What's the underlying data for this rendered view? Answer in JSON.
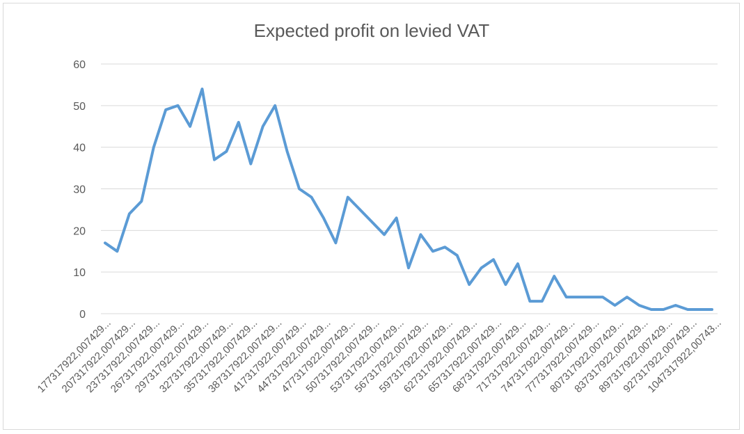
{
  "chart_data": {
    "type": "line",
    "title": "Expected profit on levied VAT",
    "xlabel": "",
    "ylabel": "",
    "ylim": [
      0,
      60
    ],
    "yticks": [
      0,
      10,
      20,
      30,
      40,
      50,
      60
    ],
    "grid": true,
    "legend": "none",
    "series_color": "#5b9bd5",
    "x_tick_labels": [
      "177317922,007429...",
      "207317922,007429...",
      "237317922,007429...",
      "267317922,007429...",
      "297317922,007429...",
      "327317922,007429...",
      "357317922,007429...",
      "387317922,007429...",
      "417317922,007429...",
      "447317922,007429...",
      "477317922,007429...",
      "507317922,007429...",
      "537317922,007429...",
      "567317922,007429...",
      "597317922,007429...",
      "627317922,007429...",
      "657317922,007429...",
      "687317922,007429...",
      "717317922,007429...",
      "747317922,007429...",
      "777317922,007429...",
      "807317922,007429...",
      "837317922,007429...",
      "897317922,007429...",
      "927317922,007429...",
      "1047317922,00743..."
    ],
    "values": [
      17,
      15,
      24,
      27,
      40,
      49,
      50,
      45,
      54,
      37,
      39,
      46,
      36,
      45,
      50,
      39,
      30,
      28,
      23,
      17,
      28,
      25,
      22,
      19,
      23,
      11,
      19,
      15,
      16,
      14,
      7,
      11,
      13,
      7,
      12,
      3,
      3,
      9,
      4,
      4,
      4,
      4,
      2,
      4,
      2,
      1,
      1,
      2,
      1,
      1,
      1
    ]
  }
}
